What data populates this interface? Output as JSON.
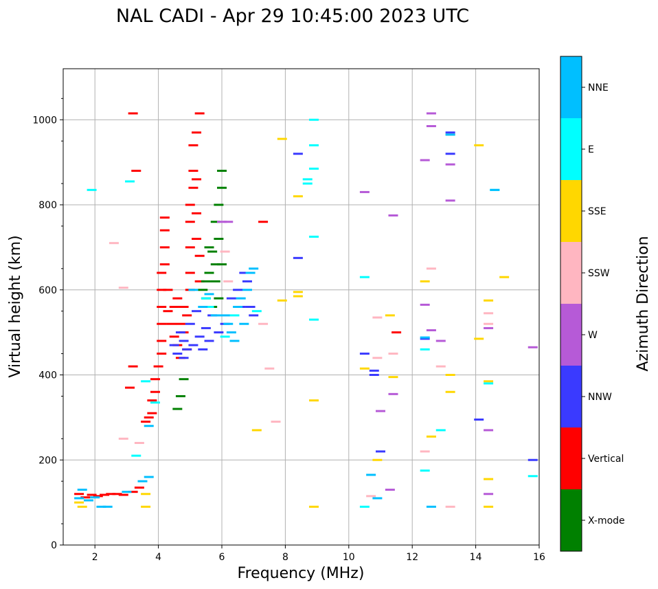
{
  "chart_data": {
    "type": "scatter",
    "title": "NAL CADI - Apr 29 10:45:00 2023 UTC",
    "xlabel": "Frequency (MHz)",
    "ylabel": "Virtual height (km)",
    "xlim": [
      1,
      16
    ],
    "ylim": [
      0,
      1120
    ],
    "xticks": [
      2,
      4,
      6,
      8,
      10,
      12,
      14,
      16
    ],
    "xtick_labels": [
      "2",
      "4",
      "6",
      "8",
      "10",
      "12",
      "14",
      "16"
    ],
    "yticks": [
      0,
      200,
      400,
      600,
      800,
      1000
    ],
    "ytick_labels": [
      "0",
      "200",
      "400",
      "600",
      "800",
      "1000"
    ],
    "grid": true,
    "colorbar": {
      "label": "Azimuth Direction",
      "categories": [
        "X-mode",
        "Vertical",
        "NNW",
        "W",
        "SSW",
        "SSE",
        "E",
        "NNE"
      ],
      "colors": [
        "#008000",
        "#ff0000",
        "#3a3aff",
        "#b65ad7",
        "#ffb6c1",
        "#ffd700",
        "#00ffff",
        "#00bfff"
      ]
    },
    "series": [
      {
        "name": "Vertical",
        "points": [
          [
            1.5,
            120
          ],
          [
            1.7,
            112
          ],
          [
            1.9,
            118
          ],
          [
            2.1,
            115
          ],
          [
            2.3,
            118
          ],
          [
            2.5,
            120
          ],
          [
            2.7,
            120
          ],
          [
            2.9,
            118
          ],
          [
            3.2,
            125
          ],
          [
            3.4,
            135
          ],
          [
            3.6,
            290
          ],
          [
            3.7,
            300
          ],
          [
            3.8,
            310
          ],
          [
            3.8,
            340
          ],
          [
            3.9,
            360
          ],
          [
            3.9,
            390
          ],
          [
            4.0,
            420
          ],
          [
            4.1,
            450
          ],
          [
            4.1,
            480
          ],
          [
            4.1,
            520
          ],
          [
            4.1,
            560
          ],
          [
            4.1,
            600
          ],
          [
            4.1,
            640
          ],
          [
            4.2,
            660
          ],
          [
            4.2,
            700
          ],
          [
            4.2,
            740
          ],
          [
            4.2,
            770
          ],
          [
            4.3,
            600
          ],
          [
            4.3,
            550
          ],
          [
            4.4,
            520
          ],
          [
            4.5,
            490
          ],
          [
            4.5,
            560
          ],
          [
            4.6,
            470
          ],
          [
            4.6,
            580
          ],
          [
            4.7,
            440
          ],
          [
            4.7,
            520
          ],
          [
            4.8,
            500
          ],
          [
            4.8,
            560
          ],
          [
            4.9,
            460
          ],
          [
            4.9,
            540
          ],
          [
            5.0,
            600
          ],
          [
            5.0,
            640
          ],
          [
            5.0,
            700
          ],
          [
            5.0,
            760
          ],
          [
            5.0,
            800
          ],
          [
            5.1,
            840
          ],
          [
            5.1,
            880
          ],
          [
            5.1,
            940
          ],
          [
            5.2,
            860
          ],
          [
            5.2,
            780
          ],
          [
            5.2,
            720
          ],
          [
            5.3,
            680
          ],
          [
            5.3,
            620
          ],
          [
            5.2,
            970
          ],
          [
            3.2,
            1015
          ],
          [
            3.3,
            880
          ],
          [
            5.3,
            1015
          ],
          [
            7.3,
            760
          ],
          [
            3.2,
            420
          ],
          [
            3.1,
            370
          ],
          [
            11.5,
            500
          ]
        ]
      },
      {
        "name": "X-mode",
        "points": [
          [
            5.4,
            600
          ],
          [
            5.5,
            580
          ],
          [
            5.6,
            640
          ],
          [
            5.7,
            560
          ],
          [
            5.7,
            690
          ],
          [
            5.8,
            620
          ],
          [
            5.8,
            760
          ],
          [
            5.9,
            720
          ],
          [
            5.9,
            580
          ],
          [
            5.9,
            800
          ],
          [
            6.0,
            660
          ],
          [
            6.0,
            840
          ],
          [
            6.0,
            880
          ],
          [
            5.5,
            620
          ],
          [
            5.6,
            700
          ],
          [
            5.8,
            660
          ],
          [
            4.8,
            390
          ],
          [
            4.7,
            350
          ],
          [
            4.6,
            320
          ]
        ]
      },
      {
        "name": "NNW",
        "points": [
          [
            4.5,
            470
          ],
          [
            4.6,
            450
          ],
          [
            4.7,
            500
          ],
          [
            4.8,
            440
          ],
          [
            4.8,
            480
          ],
          [
            4.9,
            460
          ],
          [
            5.0,
            520
          ],
          [
            5.1,
            470
          ],
          [
            5.2,
            550
          ],
          [
            5.3,
            490
          ],
          [
            5.4,
            460
          ],
          [
            5.5,
            510
          ],
          [
            5.6,
            480
          ],
          [
            5.7,
            540
          ],
          [
            5.9,
            500
          ],
          [
            6.1,
            520
          ],
          [
            6.3,
            580
          ],
          [
            6.5,
            600
          ],
          [
            6.6,
            560
          ],
          [
            6.7,
            640
          ],
          [
            6.8,
            620
          ],
          [
            6.9,
            560
          ],
          [
            7.0,
            540
          ],
          [
            8.4,
            920
          ],
          [
            8.4,
            675
          ],
          [
            10.5,
            450
          ],
          [
            10.8,
            400
          ],
          [
            10.8,
            410
          ],
          [
            11.0,
            220
          ],
          [
            12.4,
            485
          ],
          [
            13.2,
            920
          ],
          [
            13.2,
            970
          ],
          [
            14.1,
            295
          ],
          [
            15.8,
            200
          ]
        ]
      },
      {
        "name": "W",
        "points": [
          [
            6.0,
            760
          ],
          [
            6.2,
            760
          ],
          [
            10.5,
            830
          ],
          [
            11.0,
            315
          ],
          [
            11.3,
            130
          ],
          [
            11.4,
            775
          ],
          [
            11.4,
            355
          ],
          [
            12.4,
            905
          ],
          [
            12.4,
            565
          ],
          [
            12.6,
            1015
          ],
          [
            12.6,
            985
          ],
          [
            12.6,
            505
          ],
          [
            12.9,
            480
          ],
          [
            13.2,
            895
          ],
          [
            13.2,
            810
          ],
          [
            14.4,
            510
          ],
          [
            14.4,
            270
          ],
          [
            14.4,
            120
          ],
          [
            15.8,
            465
          ]
        ]
      },
      {
        "name": "SSW",
        "points": [
          [
            2.6,
            710
          ],
          [
            2.9,
            605
          ],
          [
            2.9,
            250
          ],
          [
            3.4,
            240
          ],
          [
            6.1,
            690
          ],
          [
            6.2,
            620
          ],
          [
            7.3,
            520
          ],
          [
            7.5,
            415
          ],
          [
            7.7,
            290
          ],
          [
            10.9,
            535
          ],
          [
            10.9,
            440
          ],
          [
            10.7,
            115
          ],
          [
            11.4,
            450
          ],
          [
            12.4,
            220
          ],
          [
            12.6,
            650
          ],
          [
            12.9,
            420
          ],
          [
            13.2,
            90
          ],
          [
            14.4,
            545
          ],
          [
            14.4,
            520
          ]
        ]
      },
      {
        "name": "SSE",
        "points": [
          [
            1.5,
            100
          ],
          [
            1.6,
            90
          ],
          [
            3.6,
            90
          ],
          [
            3.6,
            120
          ],
          [
            7.1,
            270
          ],
          [
            7.9,
            575
          ],
          [
            7.9,
            955
          ],
          [
            8.4,
            820
          ],
          [
            8.4,
            595
          ],
          [
            8.4,
            585
          ],
          [
            8.9,
            340
          ],
          [
            8.9,
            90
          ],
          [
            10.5,
            415
          ],
          [
            10.9,
            200
          ],
          [
            11.3,
            540
          ],
          [
            11.4,
            395
          ],
          [
            12.4,
            620
          ],
          [
            12.6,
            255
          ],
          [
            13.2,
            400
          ],
          [
            13.2,
            965
          ],
          [
            13.2,
            360
          ],
          [
            14.1,
            940
          ],
          [
            14.1,
            485
          ],
          [
            14.4,
            575
          ],
          [
            14.4,
            385
          ],
          [
            14.4,
            155
          ],
          [
            14.4,
            90
          ],
          [
            14.9,
            630
          ]
        ]
      },
      {
        "name": "E",
        "points": [
          [
            1.9,
            835
          ],
          [
            3.1,
            855
          ],
          [
            3.3,
            210
          ],
          [
            3.6,
            385
          ],
          [
            3.9,
            335
          ],
          [
            5.5,
            580
          ],
          [
            5.6,
            560
          ],
          [
            6.1,
            490
          ],
          [
            6.4,
            540
          ],
          [
            7.1,
            550
          ],
          [
            8.7,
            860
          ],
          [
            8.7,
            850
          ],
          [
            8.9,
            1000
          ],
          [
            8.9,
            940
          ],
          [
            8.9,
            885
          ],
          [
            8.9,
            725
          ],
          [
            8.9,
            530
          ],
          [
            10.5,
            630
          ],
          [
            10.5,
            90
          ],
          [
            12.4,
            460
          ],
          [
            12.4,
            175
          ],
          [
            12.9,
            270
          ],
          [
            14.4,
            380
          ],
          [
            14.6,
            835
          ],
          [
            15.8,
            162
          ]
        ]
      },
      {
        "name": "NNE",
        "points": [
          [
            1.5,
            110
          ],
          [
            1.6,
            130
          ],
          [
            1.8,
            105
          ],
          [
            2.0,
            112
          ],
          [
            2.2,
            90
          ],
          [
            2.4,
            90
          ],
          [
            3.0,
            125
          ],
          [
            3.5,
            150
          ],
          [
            3.7,
            160
          ],
          [
            3.7,
            280
          ],
          [
            5.1,
            600
          ],
          [
            5.4,
            560
          ],
          [
            5.6,
            590
          ],
          [
            5.8,
            540
          ],
          [
            6.1,
            540
          ],
          [
            6.2,
            520
          ],
          [
            6.3,
            500
          ],
          [
            6.4,
            480
          ],
          [
            6.5,
            560
          ],
          [
            6.6,
            580
          ],
          [
            6.7,
            520
          ],
          [
            6.8,
            600
          ],
          [
            6.9,
            640
          ],
          [
            7.0,
            650
          ],
          [
            10.7,
            165
          ],
          [
            10.9,
            110
          ],
          [
            12.4,
            488
          ],
          [
            12.6,
            90
          ],
          [
            13.2,
            965
          ],
          [
            14.6,
            835
          ]
        ]
      }
    ]
  }
}
